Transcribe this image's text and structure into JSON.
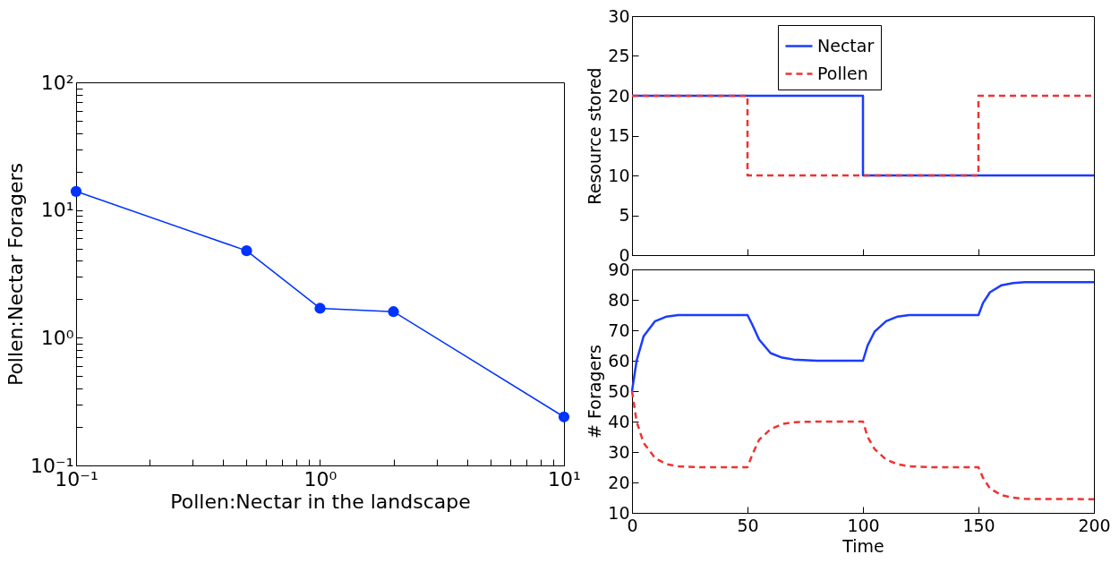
{
  "chart_data": [
    {
      "type": "line",
      "xlabel": "Pollen:Nectar in the landscape",
      "ylabel": "Pollen:Nectar Foragers",
      "log": "xy",
      "marker": "circle",
      "x": [
        0.1,
        0.5,
        1,
        2,
        10
      ],
      "series": [
        {
          "color": "#0033ff",
          "values": [
            14,
            4.8,
            1.7,
            1.6,
            0.24
          ]
        }
      ],
      "xlim": [
        0.1,
        10
      ],
      "ylim": [
        0.1,
        100
      ],
      "xticks": [
        {
          "value": 0.1,
          "label": "10⁻¹"
        },
        {
          "value": 0.2,
          "label": null
        },
        {
          "value": 0.3,
          "label": null
        },
        {
          "value": 0.4,
          "label": null
        },
        {
          "value": 0.5,
          "label": null
        },
        {
          "value": 0.6,
          "label": null
        },
        {
          "value": 0.7,
          "label": null
        },
        {
          "value": 0.8,
          "label": null
        },
        {
          "value": 0.9,
          "label": null
        },
        {
          "value": 1,
          "label": "10⁰"
        },
        {
          "value": 2,
          "label": null
        },
        {
          "value": 3,
          "label": null
        },
        {
          "value": 4,
          "label": null
        },
        {
          "value": 5,
          "label": null
        },
        {
          "value": 6,
          "label": null
        },
        {
          "value": 7,
          "label": null
        },
        {
          "value": 8,
          "label": null
        },
        {
          "value": 9,
          "label": null
        },
        {
          "value": 10,
          "label": "10¹"
        }
      ],
      "yticks": [
        {
          "value": 0.1,
          "label": "10⁻¹"
        },
        {
          "value": 0.2,
          "label": null
        },
        {
          "value": 0.3,
          "label": null
        },
        {
          "value": 0.4,
          "label": null
        },
        {
          "value": 0.5,
          "label": null
        },
        {
          "value": 0.6,
          "label": null
        },
        {
          "value": 0.7,
          "label": null
        },
        {
          "value": 0.8,
          "label": null
        },
        {
          "value": 0.9,
          "label": null
        },
        {
          "value": 1,
          "label": "10⁰"
        },
        {
          "value": 2,
          "label": null
        },
        {
          "value": 3,
          "label": null
        },
        {
          "value": 4,
          "label": null
        },
        {
          "value": 5,
          "label": null
        },
        {
          "value": 6,
          "label": null
        },
        {
          "value": 7,
          "label": null
        },
        {
          "value": 8,
          "label": null
        },
        {
          "value": 9,
          "label": null
        },
        {
          "value": 10,
          "label": "10¹"
        },
        {
          "value": 20,
          "label": null
        },
        {
          "value": 30,
          "label": null
        },
        {
          "value": 40,
          "label": null
        },
        {
          "value": 50,
          "label": null
        },
        {
          "value": 60,
          "label": null
        },
        {
          "value": 70,
          "label": null
        },
        {
          "value": 80,
          "label": null
        },
        {
          "value": 90,
          "label": null
        },
        {
          "value": 100,
          "label": "10²"
        }
      ]
    },
    {
      "type": "step",
      "ylabel": "Resource stored",
      "legend": "top",
      "tick_labels": "y",
      "series": [
        {
          "name": "Nectar",
          "color": "#1a3cff",
          "line_style": "solid",
          "x": [
            0,
            100,
            200
          ],
          "values": [
            20,
            10,
            10
          ]
        },
        {
          "name": "Pollen",
          "color": "#ee3333",
          "line_style": "dashed",
          "x": [
            0,
            50,
            150,
            200
          ],
          "values": [
            20,
            10,
            20,
            20
          ]
        }
      ],
      "xlim": [
        0,
        200
      ],
      "ylim": [
        0,
        30
      ],
      "xticks": [
        0,
        50,
        100,
        150,
        200
      ],
      "yticks": [
        0,
        5,
        10,
        15,
        20,
        25,
        30
      ]
    },
    {
      "type": "line",
      "xlabel": "Time",
      "ylabel": "# Foragers",
      "series": [
        {
          "color": "#1a3cff",
          "line_style": "solid",
          "x": [
            0,
            2,
            5,
            10,
            15,
            20,
            50,
            52,
            55,
            60,
            65,
            70,
            80,
            100,
            102,
            105,
            110,
            115,
            120,
            150,
            152,
            155,
            160,
            165,
            170,
            200
          ],
          "values": [
            50,
            60,
            68,
            73,
            74.5,
            75,
            75,
            72,
            67,
            62.5,
            61,
            60.4,
            60,
            60,
            65,
            69.5,
            73,
            74.5,
            75,
            75,
            79,
            82.5,
            84.8,
            85.5,
            85.8,
            85.8
          ]
        },
        {
          "color": "#ee3333",
          "line_style": "dashed",
          "x": [
            0,
            2,
            5,
            10,
            15,
            20,
            30,
            50,
            52,
            55,
            60,
            65,
            70,
            80,
            100,
            102,
            105,
            110,
            115,
            120,
            130,
            150,
            152,
            155,
            160,
            165,
            170,
            200
          ],
          "values": [
            50,
            40,
            33,
            28,
            26,
            25.3,
            25,
            25,
            29,
            34,
            37.5,
            39.2,
            39.8,
            40,
            40,
            35,
            31,
            27.5,
            26,
            25.3,
            25,
            25,
            21.5,
            18,
            15.8,
            15,
            14.6,
            14.5
          ]
        }
      ],
      "xlim": [
        0,
        200
      ],
      "ylim": [
        10,
        90
      ],
      "xticks": [
        0,
        50,
        100,
        150,
        200
      ],
      "yticks": [
        10,
        20,
        30,
        40,
        50,
        60,
        70,
        80,
        90
      ]
    }
  ]
}
